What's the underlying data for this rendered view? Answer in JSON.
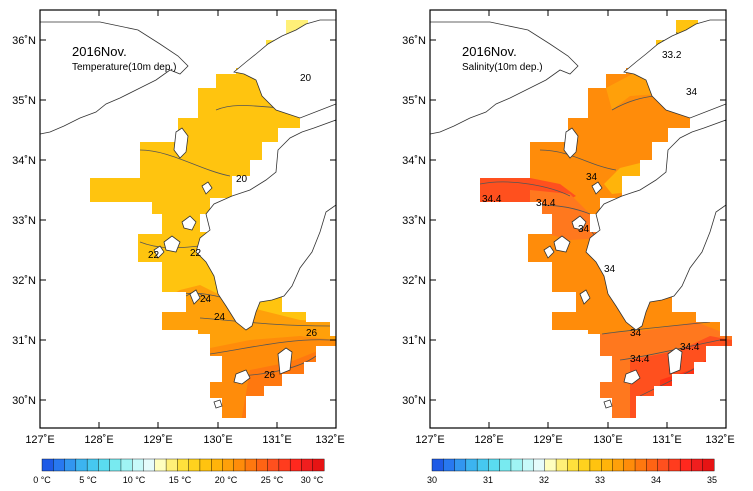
{
  "panels": [
    {
      "title": "2016Nov.",
      "subtitle": "Temperature(10m dep.)",
      "contour_labels": [
        "20",
        "20",
        "22",
        "22",
        "24",
        "24",
        "26",
        "26"
      ],
      "colorbar": {
        "tick_labels": [
          "0 °C",
          "5 °C",
          "10 °C",
          "15 °C",
          "20 °C",
          "25 °C",
          "30 °C"
        ],
        "colors": [
          "#1e5ae6",
          "#2878f0",
          "#3296f0",
          "#3cb4f0",
          "#46c8f0",
          "#5adcf0",
          "#78eaf0",
          "#a0f4f4",
          "#c8fafa",
          "#e6fcfc",
          "#ffffbe",
          "#fff078",
          "#ffe13c",
          "#ffd21e",
          "#ffc30f",
          "#ffb40a",
          "#ffa00a",
          "#ff8c0a",
          "#ff780f",
          "#ff6414",
          "#ff501e",
          "#ff3c1e",
          "#ff281e",
          "#f01e1e",
          "#e61414"
        ]
      }
    },
    {
      "title": "2016Nov.",
      "subtitle": "Salinity(10m dep.)",
      "contour_labels": [
        "33.2",
        "34",
        "34",
        "34.4",
        "34.4",
        "34",
        "34",
        "34",
        "34.4",
        "34.4"
      ],
      "colorbar": {
        "tick_labels": [
          "30",
          "31",
          "32",
          "33",
          "34",
          "35"
        ],
        "colors": [
          "#1e5ae6",
          "#2878f0",
          "#3296f0",
          "#3cb4f0",
          "#46c8f0",
          "#5adcf0",
          "#78eaf0",
          "#a0f4f4",
          "#c8fafa",
          "#e6fcfc",
          "#ffffbe",
          "#fff078",
          "#ffe13c",
          "#ffd21e",
          "#ffc30f",
          "#ffb40a",
          "#ffa00a",
          "#ff8c0a",
          "#ff780f",
          "#ff6414",
          "#ff501e",
          "#ff3c1e",
          "#ff281e",
          "#f01e1e",
          "#e61414"
        ]
      }
    }
  ],
  "axes": {
    "x_tick_labels": [
      "127˚E",
      "128˚E",
      "129˚E",
      "130˚E",
      "131˚E",
      "132˚E"
    ],
    "y_tick_labels": [
      "36˚N",
      "35˚N",
      "34˚N",
      "33˚N",
      "32˚N",
      "31˚N",
      "30˚N"
    ]
  },
  "palette": {
    "land": "#ffffff",
    "coast": "#333333",
    "frame": "#000000",
    "contour": "#555555"
  }
}
